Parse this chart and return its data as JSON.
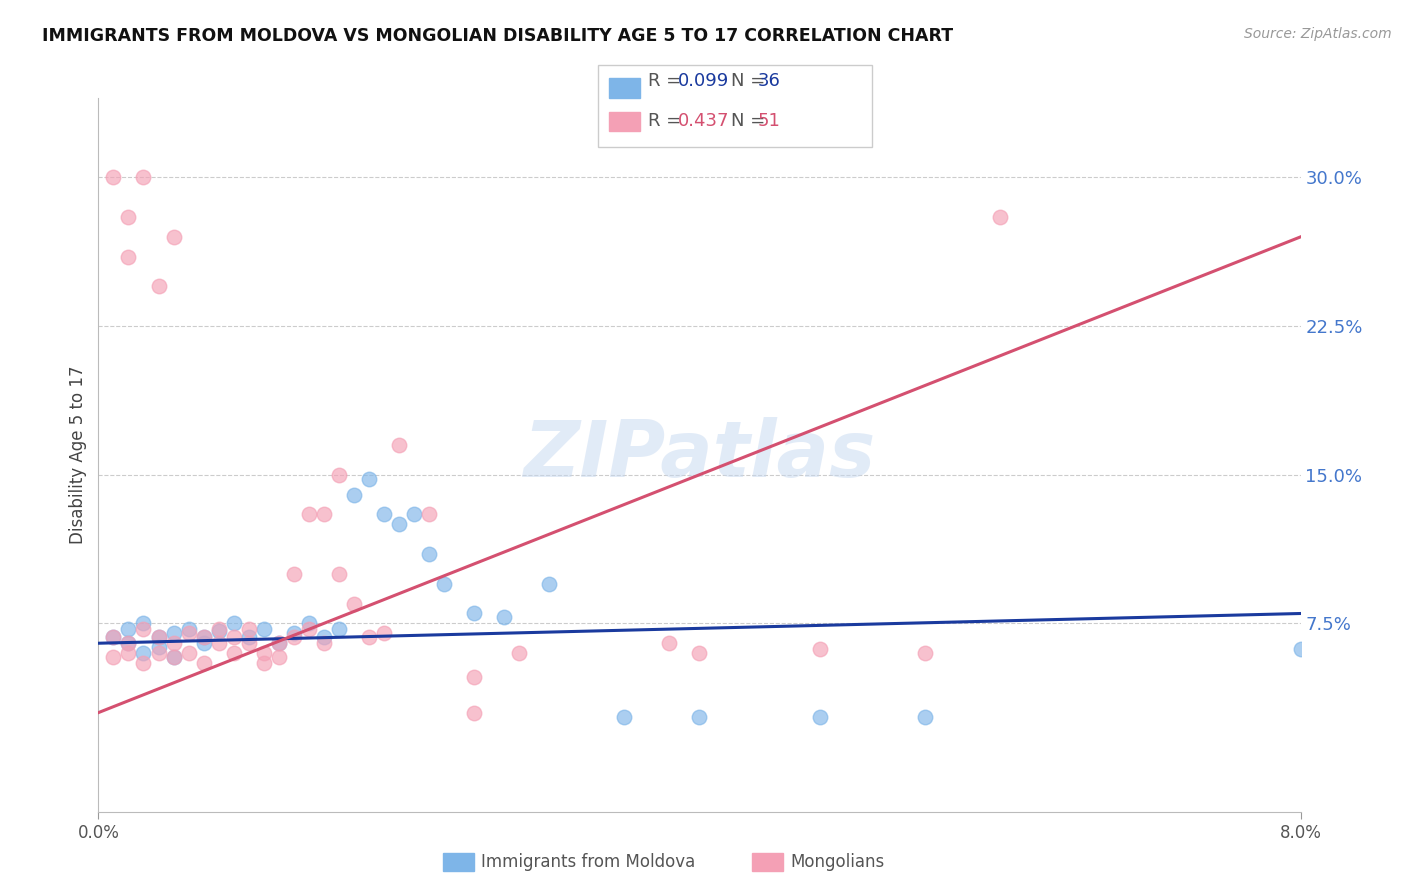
{
  "title": "IMMIGRANTS FROM MOLDOVA VS MONGOLIAN DISABILITY AGE 5 TO 17 CORRELATION CHART",
  "source": "Source: ZipAtlas.com",
  "ylabel": "Disability Age 5 to 17",
  "ytick_labels": [
    "7.5%",
    "15.0%",
    "22.5%",
    "30.0%"
  ],
  "ytick_values": [
    0.075,
    0.15,
    0.225,
    0.3
  ],
  "xlim": [
    0.0,
    0.08
  ],
  "ylim": [
    -0.02,
    0.34
  ],
  "watermark": "ZIPatlas",
  "moldova_color": "#7eb5e8",
  "mongolia_color": "#f4a0b5",
  "moldova_line_color": "#1a3a9e",
  "mongolia_line_color": "#d45070",
  "moldova_R": 0.099,
  "moldova_N": 36,
  "mongolia_R": 0.437,
  "mongolia_N": 51,
  "moldova_scatter": [
    [
      0.001,
      0.068
    ],
    [
      0.002,
      0.065
    ],
    [
      0.002,
      0.072
    ],
    [
      0.003,
      0.06
    ],
    [
      0.003,
      0.075
    ],
    [
      0.004,
      0.068
    ],
    [
      0.004,
      0.063
    ],
    [
      0.005,
      0.07
    ],
    [
      0.005,
      0.058
    ],
    [
      0.006,
      0.072
    ],
    [
      0.007,
      0.065
    ],
    [
      0.007,
      0.068
    ],
    [
      0.008,
      0.071
    ],
    [
      0.009,
      0.075
    ],
    [
      0.01,
      0.068
    ],
    [
      0.011,
      0.072
    ],
    [
      0.012,
      0.065
    ],
    [
      0.013,
      0.07
    ],
    [
      0.014,
      0.075
    ],
    [
      0.015,
      0.068
    ],
    [
      0.016,
      0.072
    ],
    [
      0.017,
      0.14
    ],
    [
      0.018,
      0.148
    ],
    [
      0.019,
      0.13
    ],
    [
      0.02,
      0.125
    ],
    [
      0.021,
      0.13
    ],
    [
      0.022,
      0.11
    ],
    [
      0.023,
      0.095
    ],
    [
      0.025,
      0.08
    ],
    [
      0.027,
      0.078
    ],
    [
      0.03,
      0.095
    ],
    [
      0.035,
      0.028
    ],
    [
      0.04,
      0.028
    ],
    [
      0.048,
      0.028
    ],
    [
      0.055,
      0.028
    ],
    [
      0.08,
      0.062
    ]
  ],
  "mongolia_scatter": [
    [
      0.001,
      0.068
    ],
    [
      0.001,
      0.058
    ],
    [
      0.002,
      0.065
    ],
    [
      0.002,
      0.06
    ],
    [
      0.003,
      0.072
    ],
    [
      0.003,
      0.055
    ],
    [
      0.004,
      0.068
    ],
    [
      0.004,
      0.06
    ],
    [
      0.005,
      0.065
    ],
    [
      0.005,
      0.058
    ],
    [
      0.006,
      0.07
    ],
    [
      0.006,
      0.06
    ],
    [
      0.007,
      0.068
    ],
    [
      0.007,
      0.055
    ],
    [
      0.008,
      0.065
    ],
    [
      0.008,
      0.072
    ],
    [
      0.009,
      0.06
    ],
    [
      0.009,
      0.068
    ],
    [
      0.01,
      0.065
    ],
    [
      0.01,
      0.072
    ],
    [
      0.011,
      0.06
    ],
    [
      0.011,
      0.055
    ],
    [
      0.012,
      0.065
    ],
    [
      0.012,
      0.058
    ],
    [
      0.013,
      0.068
    ],
    [
      0.013,
      0.1
    ],
    [
      0.014,
      0.072
    ],
    [
      0.014,
      0.13
    ],
    [
      0.015,
      0.13
    ],
    [
      0.015,
      0.065
    ],
    [
      0.016,
      0.1
    ],
    [
      0.016,
      0.15
    ],
    [
      0.017,
      0.085
    ],
    [
      0.018,
      0.068
    ],
    [
      0.019,
      0.07
    ],
    [
      0.02,
      0.165
    ],
    [
      0.022,
      0.13
    ],
    [
      0.025,
      0.048
    ],
    [
      0.025,
      0.03
    ],
    [
      0.028,
      0.06
    ],
    [
      0.038,
      0.065
    ],
    [
      0.04,
      0.06
    ],
    [
      0.048,
      0.062
    ],
    [
      0.055,
      0.06
    ],
    [
      0.001,
      0.3
    ],
    [
      0.002,
      0.28
    ],
    [
      0.002,
      0.26
    ],
    [
      0.003,
      0.3
    ],
    [
      0.004,
      0.245
    ],
    [
      0.005,
      0.27
    ],
    [
      0.06,
      0.28
    ]
  ]
}
